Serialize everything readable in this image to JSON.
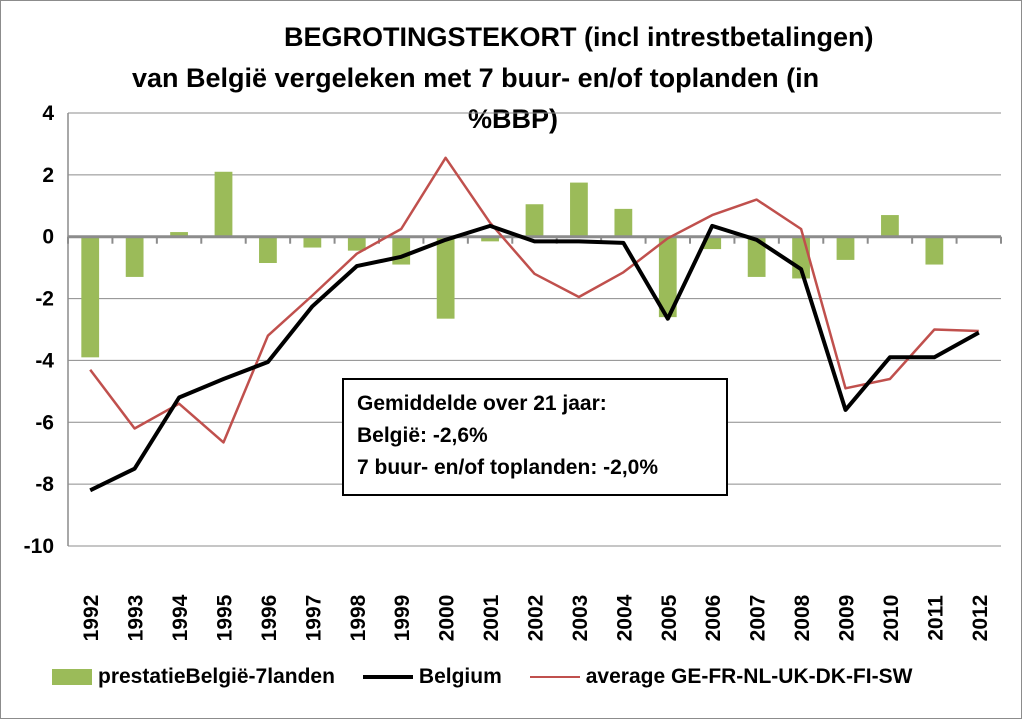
{
  "chart_data": {
    "type": "bar+line",
    "title_lines": [
      "BEGROTINGSTEKORT (incl intrestbetalingen)",
      "van België vergeleken met 7 buur- en/of toplanden (in",
      "%BBP)"
    ],
    "categories": [
      "1992",
      "1993",
      "1994",
      "1995",
      "1996",
      "1997",
      "1998",
      "1999",
      "2000",
      "2001",
      "2002",
      "2003",
      "2004",
      "2005",
      "2006",
      "2007",
      "2008",
      "2009",
      "2010",
      "2011",
      "2012"
    ],
    "ylim": [
      -10,
      4
    ],
    "yticks": [
      "4",
      "2",
      "0",
      "-2",
      "-4",
      "-6",
      "-8",
      "-10"
    ],
    "grid": true,
    "legend_position": "bottom",
    "series": [
      {
        "name": "prestatieBelgië-7landen",
        "kind": "bar",
        "color": "#9bbb59",
        "values": [
          -3.9,
          -1.3,
          0.15,
          2.1,
          -0.85,
          -0.35,
          -0.45,
          -0.9,
          -2.65,
          -0.15,
          1.05,
          1.75,
          0.9,
          -2.6,
          -0.4,
          -1.3,
          -1.35,
          -0.75,
          0.7,
          -0.9,
          0.0
        ]
      },
      {
        "name": "Belgium",
        "kind": "line",
        "color": "#000000",
        "values": [
          -8.2,
          -7.5,
          -5.2,
          -4.6,
          -4.05,
          -2.25,
          -0.95,
          -0.65,
          -0.1,
          0.35,
          -0.15,
          -0.15,
          -0.2,
          -2.65,
          0.35,
          -0.1,
          -1.05,
          -5.6,
          -3.9,
          -3.9,
          -3.1
        ]
      },
      {
        "name": "average GE-FR-NL-UK-DK-FI-SW",
        "kind": "line",
        "color": "#c0504d",
        "values": [
          -4.3,
          -6.2,
          -5.4,
          -6.65,
          -3.2,
          -1.9,
          -0.55,
          0.25,
          2.55,
          0.45,
          -1.2,
          -1.95,
          -1.15,
          -0.05,
          0.7,
          1.2,
          0.25,
          -4.9,
          -4.6,
          -3.0,
          -3.05
        ]
      }
    ],
    "annotation_lines": [
      "Gemiddelde over 21 jaar:",
      "België: -2,6%",
      "7 buur- en/of toplanden: -2,0%"
    ]
  }
}
